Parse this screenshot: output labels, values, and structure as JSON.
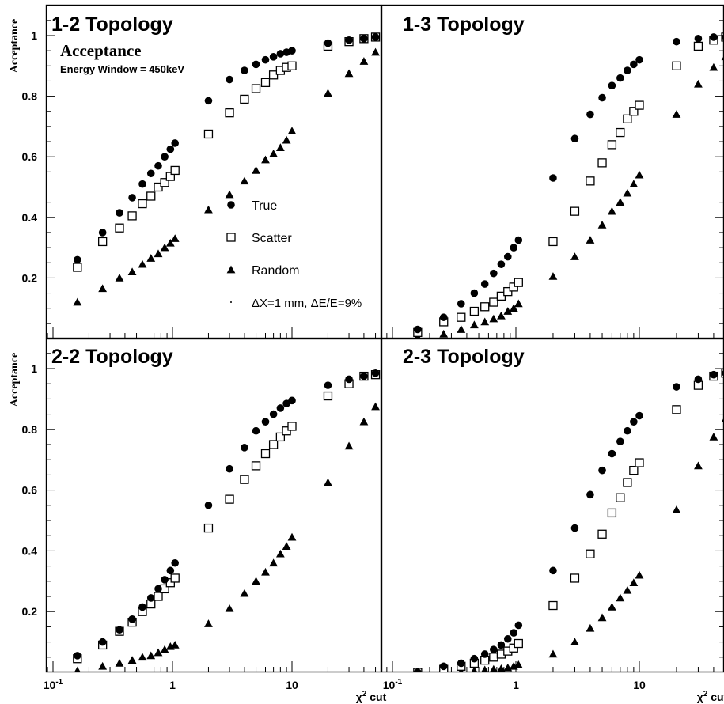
{
  "figure": {
    "y_axis_label": "Acceptance",
    "x_axis_label": "χ",
    "x_axis_label_sup": "2",
    "x_axis_label_suffix": " cut",
    "legend_title": "Acceptance",
    "legend_subtitle": "Energy Window = 450keV",
    "legend_note": "ΔX=1 mm, ΔE/E=9%",
    "x_tick_labels": [
      {
        "value": 0.1,
        "base": "10",
        "exp": "-1"
      },
      {
        "value": 1,
        "base": "1",
        "exp": ""
      },
      {
        "value": 10,
        "base": "10",
        "exp": ""
      }
    ],
    "y_tick_labels": [
      "0.2",
      "0.4",
      "0.6",
      "0.8",
      "1"
    ],
    "y_tick_values": [
      0.2,
      0.4,
      0.6,
      0.8,
      1.0
    ]
  },
  "chart_data": [
    {
      "type": "scatter",
      "title": "1-2 Topology",
      "x_scale": "log",
      "xlim": [
        0.085,
        55
      ],
      "ylim": [
        0.0,
        1.06
      ],
      "grid": false,
      "legend": "center-right",
      "x": [
        0.16,
        0.26,
        0.36,
        0.46,
        0.56,
        0.66,
        0.76,
        0.86,
        0.96,
        1.05,
        2,
        3,
        4,
        5,
        6,
        7,
        8,
        9,
        10,
        20,
        30,
        40,
        50
      ],
      "series": [
        {
          "name": "True",
          "marker": "circle",
          "values": [
            0.26,
            0.35,
            0.415,
            0.465,
            0.51,
            0.545,
            0.57,
            0.6,
            0.625,
            0.645,
            0.785,
            0.855,
            0.885,
            0.905,
            0.92,
            0.93,
            0.94,
            0.945,
            0.95,
            0.975,
            0.985,
            0.99,
            0.995
          ]
        },
        {
          "name": "Scatter",
          "marker": "open-square",
          "values": [
            0.235,
            0.32,
            0.365,
            0.405,
            0.445,
            0.47,
            0.5,
            0.515,
            0.535,
            0.555,
            0.675,
            0.745,
            0.79,
            0.825,
            0.845,
            0.87,
            0.885,
            0.895,
            0.9,
            0.965,
            0.98,
            0.99,
            0.995
          ]
        },
        {
          "name": "Random",
          "marker": "triangle",
          "values": [
            0.12,
            0.165,
            0.2,
            0.22,
            0.245,
            0.265,
            0.28,
            0.3,
            0.315,
            0.33,
            0.425,
            0.475,
            0.52,
            0.555,
            0.59,
            0.61,
            0.63,
            0.655,
            0.685,
            0.81,
            0.875,
            0.915,
            0.945
          ]
        }
      ]
    },
    {
      "type": "scatter",
      "title": "1-3 Topology",
      "x_scale": "log",
      "xlim": [
        0.085,
        55
      ],
      "ylim": [
        0.0,
        1.06
      ],
      "grid": false,
      "x": [
        0.16,
        0.26,
        0.36,
        0.46,
        0.56,
        0.66,
        0.76,
        0.86,
        0.96,
        1.05,
        2,
        3,
        4,
        5,
        6,
        7,
        8,
        9,
        10,
        20,
        30,
        40,
        50
      ],
      "series": [
        {
          "name": "True",
          "marker": "circle",
          "values": [
            0.03,
            0.07,
            0.115,
            0.15,
            0.18,
            0.215,
            0.245,
            0.27,
            0.3,
            0.325,
            0.53,
            0.66,
            0.74,
            0.795,
            0.835,
            0.86,
            0.885,
            0.905,
            0.92,
            0.98,
            0.99,
            0.995,
            0.995
          ]
        },
        {
          "name": "Scatter",
          "marker": "open-square",
          "values": [
            0.02,
            0.055,
            0.07,
            0.09,
            0.105,
            0.12,
            0.14,
            0.155,
            0.17,
            0.185,
            0.32,
            0.42,
            0.52,
            0.58,
            0.64,
            0.68,
            0.725,
            0.75,
            0.77,
            0.9,
            0.965,
            0.985,
            0.995
          ]
        },
        {
          "name": "Random",
          "marker": "triangle",
          "values": [
            0.005,
            0.015,
            0.03,
            0.045,
            0.055,
            0.065,
            0.075,
            0.09,
            0.1,
            0.115,
            0.205,
            0.27,
            0.325,
            0.375,
            0.42,
            0.45,
            0.48,
            0.51,
            0.54,
            0.74,
            0.84,
            0.895,
            0.93
          ]
        }
      ]
    },
    {
      "type": "scatter",
      "title": "2-2 Topology",
      "x_scale": "log",
      "xlim": [
        0.085,
        55
      ],
      "ylim": [
        0.0,
        1.06
      ],
      "grid": false,
      "x": [
        0.16,
        0.26,
        0.36,
        0.46,
        0.56,
        0.66,
        0.76,
        0.86,
        0.96,
        1.05,
        2,
        3,
        4,
        5,
        6,
        7,
        8,
        9,
        10,
        20,
        30,
        40,
        50
      ],
      "series": [
        {
          "name": "True",
          "marker": "circle",
          "values": [
            0.055,
            0.1,
            0.14,
            0.175,
            0.215,
            0.245,
            0.275,
            0.305,
            0.335,
            0.36,
            0.55,
            0.67,
            0.74,
            0.795,
            0.825,
            0.85,
            0.87,
            0.885,
            0.895,
            0.945,
            0.965,
            0.975,
            0.985
          ]
        },
        {
          "name": "Scatter",
          "marker": "open-square",
          "values": [
            0.045,
            0.09,
            0.135,
            0.165,
            0.2,
            0.225,
            0.25,
            0.275,
            0.295,
            0.31,
            0.475,
            0.57,
            0.635,
            0.68,
            0.72,
            0.75,
            0.775,
            0.795,
            0.81,
            0.91,
            0.95,
            0.975,
            0.98
          ]
        },
        {
          "name": "Random",
          "marker": "triangle",
          "values": [
            0.005,
            0.02,
            0.03,
            0.04,
            0.05,
            0.055,
            0.065,
            0.075,
            0.085,
            0.09,
            0.16,
            0.21,
            0.26,
            0.3,
            0.33,
            0.36,
            0.39,
            0.415,
            0.445,
            0.625,
            0.745,
            0.825,
            0.875
          ]
        }
      ]
    },
    {
      "type": "scatter",
      "title": "2-3 Topology",
      "x_scale": "log",
      "xlim": [
        0.085,
        55
      ],
      "ylim": [
        0.0,
        1.06
      ],
      "grid": false,
      "x": [
        0.16,
        0.26,
        0.36,
        0.46,
        0.56,
        0.66,
        0.76,
        0.86,
        0.96,
        1.05,
        2,
        3,
        4,
        5,
        6,
        7,
        8,
        9,
        10,
        20,
        30,
        40,
        50
      ],
      "series": [
        {
          "name": "True",
          "marker": "circle",
          "values": [
            0.0,
            0.02,
            0.03,
            0.045,
            0.06,
            0.075,
            0.09,
            0.11,
            0.13,
            0.155,
            0.335,
            0.475,
            0.585,
            0.665,
            0.72,
            0.76,
            0.795,
            0.825,
            0.845,
            0.94,
            0.965,
            0.98,
            0.985
          ]
        },
        {
          "name": "Scatter",
          "marker": "open-square",
          "values": [
            0.0,
            0.01,
            0.02,
            0.03,
            0.04,
            0.05,
            0.06,
            0.07,
            0.08,
            0.095,
            0.22,
            0.31,
            0.39,
            0.455,
            0.525,
            0.575,
            0.625,
            0.665,
            0.69,
            0.865,
            0.945,
            0.975,
            0.985
          ]
        },
        {
          "name": "Random",
          "marker": "triangle",
          "values": [
            0.0,
            0.0,
            0.002,
            0.005,
            0.008,
            0.01,
            0.012,
            0.015,
            0.02,
            0.025,
            0.06,
            0.1,
            0.145,
            0.18,
            0.215,
            0.245,
            0.27,
            0.295,
            0.32,
            0.535,
            0.68,
            0.775,
            0.835
          ]
        }
      ]
    }
  ]
}
